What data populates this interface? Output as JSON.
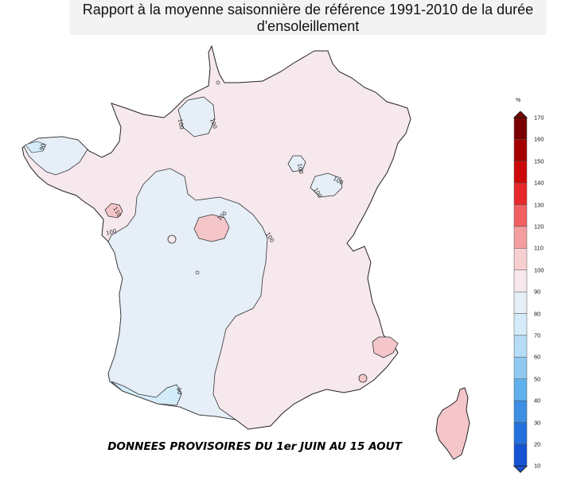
{
  "title": "Rapport à la moyenne saisonnière de référence 1991-2010 de la durée d'ensoleillement",
  "subtitle": "DONNEES PROVISOIRES DU 1er JUIN AU 15 AOUT",
  "legend": {
    "unit": "%",
    "ticks": [
      "170",
      "160",
      "150",
      "140",
      "130",
      "120",
      "110",
      "100",
      "90",
      "80",
      "70",
      "60",
      "50",
      "40",
      "30",
      "20",
      "10"
    ],
    "colors": [
      "#7a0000",
      "#a50000",
      "#cc0a0a",
      "#e8272a",
      "#f05f62",
      "#f49ea0",
      "#f8cfd0",
      "#f6e8ec",
      "#e6eef7",
      "#d4ecfa",
      "#b6dcf7",
      "#8fc9f2",
      "#5fb0ec",
      "#3c8fe3",
      "#2371dc",
      "#1553d4"
    ]
  },
  "contour_labels": {
    "l100": "100",
    "l110": "110",
    "l90": "90"
  },
  "colors": {
    "class_100_110": "#f6e8ec",
    "class_90_100": "#e6eef7",
    "class_110_120": "#f4c6c9",
    "class_80_90": "#d4ecfa",
    "outline": "#222222"
  }
}
